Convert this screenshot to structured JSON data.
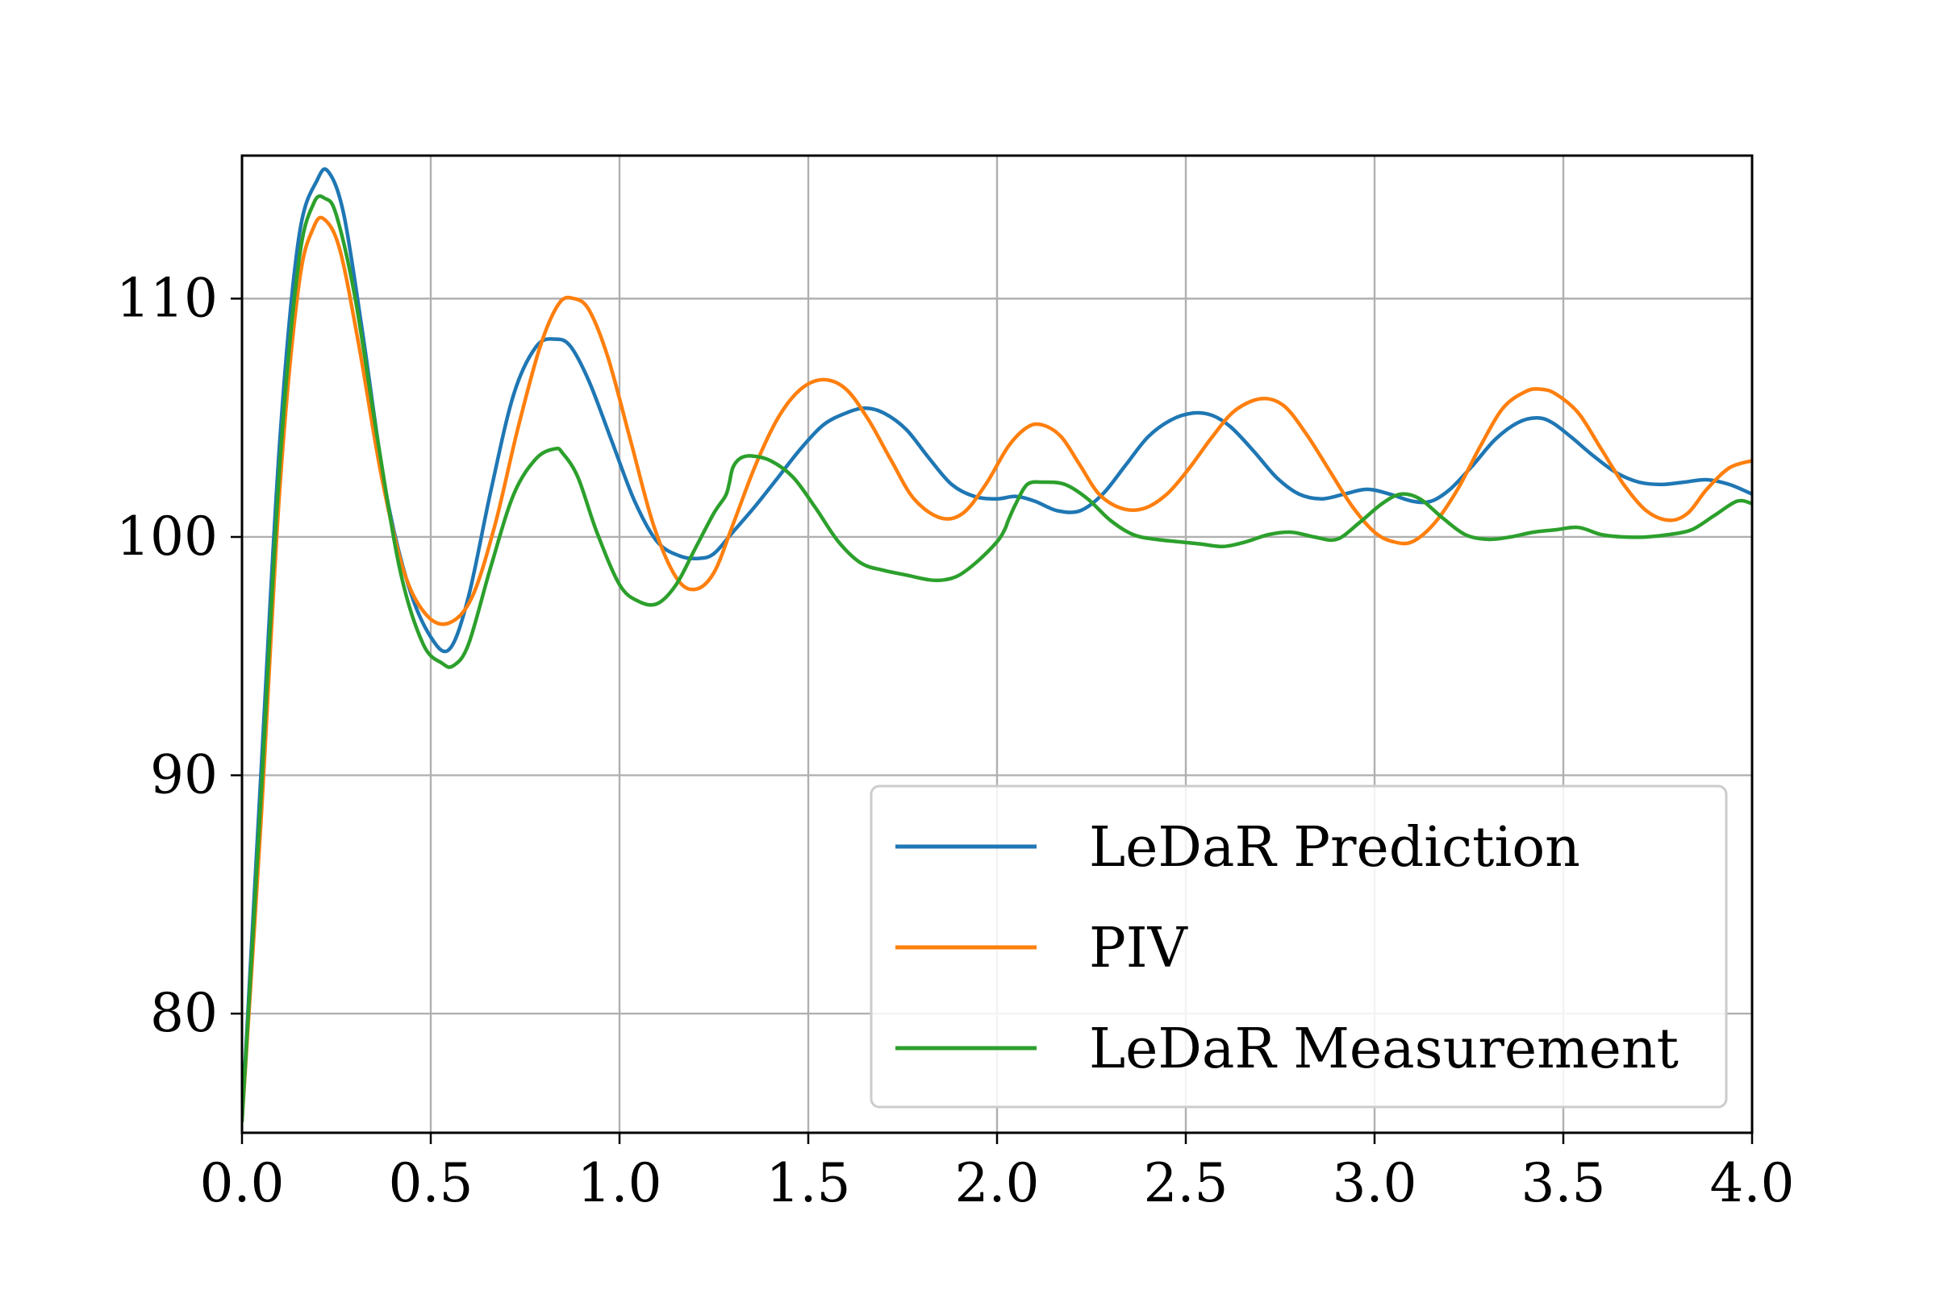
{
  "chart_data": {
    "type": "line",
    "title": "",
    "xlabel": "",
    "ylabel": "",
    "xlim": [
      0.0,
      4.0
    ],
    "ylim": [
      75.0,
      116.0
    ],
    "grid": true,
    "legend_position": "bottom-right",
    "xticks": [
      0.0,
      0.5,
      1.0,
      1.5,
      2.0,
      2.5,
      3.0,
      3.5,
      4.0
    ],
    "xtick_labels": [
      "0.0",
      "0.5",
      "1.0",
      "1.5",
      "2.0",
      "2.5",
      "3.0",
      "3.5",
      "4.0"
    ],
    "yticks": [
      80,
      90,
      100,
      110
    ],
    "ytick_labels": [
      "80",
      "90",
      "100",
      "110"
    ],
    "series": [
      {
        "name": "LeDaR Prediction",
        "color": "#1f77b4",
        "x": [
          0.0,
          0.05,
          0.1,
          0.15,
          0.2,
          0.23,
          0.27,
          0.32,
          0.38,
          0.44,
          0.5,
          0.55,
          0.6,
          0.66,
          0.72,
          0.78,
          0.83,
          0.87,
          0.92,
          0.98,
          1.04,
          1.1,
          1.16,
          1.21,
          1.25,
          1.3,
          1.36,
          1.42,
          1.48,
          1.54,
          1.6,
          1.65,
          1.7,
          1.76,
          1.82,
          1.88,
          1.94,
          2.0,
          2.05,
          2.1,
          2.16,
          2.22,
          2.28,
          2.34,
          2.4,
          2.46,
          2.52,
          2.57,
          2.62,
          2.68,
          2.74,
          2.8,
          2.86,
          2.92,
          2.98,
          3.04,
          3.1,
          3.15,
          3.2,
          3.26,
          3.32,
          3.38,
          3.43,
          3.47,
          3.52,
          3.58,
          3.64,
          3.7,
          3.76,
          3.82,
          3.88,
          3.94,
          4.0
        ],
        "y": [
          75.5,
          90.0,
          104.0,
          112.5,
          115.0,
          115.3,
          113.5,
          108.5,
          102.0,
          98.0,
          95.8,
          95.3,
          97.5,
          102.0,
          106.0,
          108.0,
          108.3,
          108.0,
          106.5,
          104.0,
          101.5,
          99.8,
          99.2,
          99.1,
          99.3,
          100.2,
          101.3,
          102.5,
          103.7,
          104.7,
          105.2,
          105.4,
          105.2,
          104.5,
          103.3,
          102.2,
          101.7,
          101.6,
          101.7,
          101.5,
          101.1,
          101.1,
          101.8,
          103.0,
          104.2,
          104.9,
          105.2,
          105.1,
          104.6,
          103.6,
          102.5,
          101.8,
          101.6,
          101.8,
          102.0,
          101.8,
          101.5,
          101.5,
          102.0,
          103.0,
          104.1,
          104.8,
          105.0,
          104.8,
          104.2,
          103.4,
          102.7,
          102.3,
          102.2,
          102.3,
          102.4,
          102.2,
          101.8
        ]
      },
      {
        "name": "PIV",
        "color": "#ff7f0e",
        "x": [
          0.0,
          0.05,
          0.1,
          0.15,
          0.19,
          0.22,
          0.26,
          0.31,
          0.37,
          0.43,
          0.49,
          0.55,
          0.61,
          0.67,
          0.73,
          0.79,
          0.84,
          0.88,
          0.92,
          0.97,
          1.03,
          1.09,
          1.15,
          1.2,
          1.25,
          1.3,
          1.36,
          1.42,
          1.48,
          1.54,
          1.6,
          1.66,
          1.72,
          1.78,
          1.85,
          1.91,
          1.97,
          2.03,
          2.08,
          2.12,
          2.17,
          2.22,
          2.27,
          2.33,
          2.39,
          2.45,
          2.51,
          2.57,
          2.63,
          2.7,
          2.76,
          2.82,
          2.88,
          2.94,
          3.0,
          3.05,
          3.1,
          3.16,
          3.22,
          3.28,
          3.34,
          3.4,
          3.44,
          3.48,
          3.54,
          3.6,
          3.66,
          3.72,
          3.78,
          3.83,
          3.88,
          3.94,
          4.0
        ],
        "y": [
          75.5,
          88.0,
          102.0,
          110.5,
          113.0,
          113.3,
          112.0,
          108.0,
          102.5,
          98.5,
          96.7,
          96.4,
          97.5,
          100.5,
          104.5,
          108.0,
          109.8,
          110.0,
          109.5,
          107.5,
          104.0,
          100.5,
          98.3,
          97.8,
          98.5,
          100.5,
          103.0,
          105.0,
          106.2,
          106.6,
          106.2,
          104.9,
          103.2,
          101.6,
          100.8,
          101.0,
          102.2,
          103.8,
          104.6,
          104.7,
          104.2,
          103.0,
          101.8,
          101.2,
          101.2,
          101.8,
          102.9,
          104.2,
          105.3,
          105.8,
          105.5,
          104.3,
          102.8,
          101.3,
          100.2,
          99.8,
          99.8,
          100.6,
          102.0,
          103.8,
          105.4,
          106.1,
          106.2,
          106.0,
          105.2,
          103.7,
          102.2,
          101.1,
          100.7,
          101.0,
          102.0,
          102.9,
          103.2
        ]
      },
      {
        "name": "LeDaR Measurement",
        "color": "#2ca02c",
        "x": [
          0.0,
          0.05,
          0.1,
          0.15,
          0.19,
          0.22,
          0.25,
          0.3,
          0.36,
          0.42,
          0.48,
          0.53,
          0.56,
          0.6,
          0.66,
          0.72,
          0.78,
          0.83,
          0.85,
          0.89,
          0.94,
          1.0,
          1.05,
          1.1,
          1.15,
          1.2,
          1.25,
          1.28,
          1.29,
          1.3,
          1.32,
          1.35,
          1.4,
          1.46,
          1.52,
          1.58,
          1.64,
          1.7,
          1.76,
          1.82,
          1.86,
          1.9,
          1.95,
          2.0,
          2.02,
          2.03,
          2.05,
          2.08,
          2.12,
          2.18,
          2.24,
          2.3,
          2.36,
          2.42,
          2.48,
          2.54,
          2.6,
          2.66,
          2.72,
          2.78,
          2.84,
          2.9,
          2.96,
          3.02,
          3.07,
          3.12,
          3.18,
          3.24,
          3.3,
          3.36,
          3.42,
          3.48,
          3.54,
          3.6,
          3.66,
          3.72,
          3.78,
          3.84,
          3.9,
          3.96,
          4.0
        ],
        "y": [
          75.5,
          89.0,
          103.0,
          111.5,
          114.0,
          114.2,
          113.5,
          110.0,
          104.0,
          98.5,
          95.5,
          94.7,
          94.6,
          95.5,
          98.8,
          101.8,
          103.3,
          103.7,
          103.5,
          102.5,
          100.2,
          98.0,
          97.3,
          97.2,
          98.0,
          99.5,
          101.0,
          101.7,
          102.2,
          102.9,
          103.3,
          103.4,
          103.2,
          102.5,
          101.2,
          99.8,
          98.9,
          98.6,
          98.4,
          98.2,
          98.2,
          98.4,
          99.0,
          99.8,
          100.3,
          100.7,
          101.4,
          102.2,
          102.3,
          102.2,
          101.6,
          100.7,
          100.1,
          99.9,
          99.8,
          99.7,
          99.6,
          99.8,
          100.1,
          100.2,
          100.0,
          99.9,
          100.6,
          101.4,
          101.8,
          101.6,
          100.8,
          100.1,
          99.9,
          100.0,
          100.2,
          100.3,
          100.4,
          100.1,
          100.0,
          100.0,
          100.1,
          100.3,
          100.9,
          101.5,
          101.4
        ]
      }
    ]
  }
}
